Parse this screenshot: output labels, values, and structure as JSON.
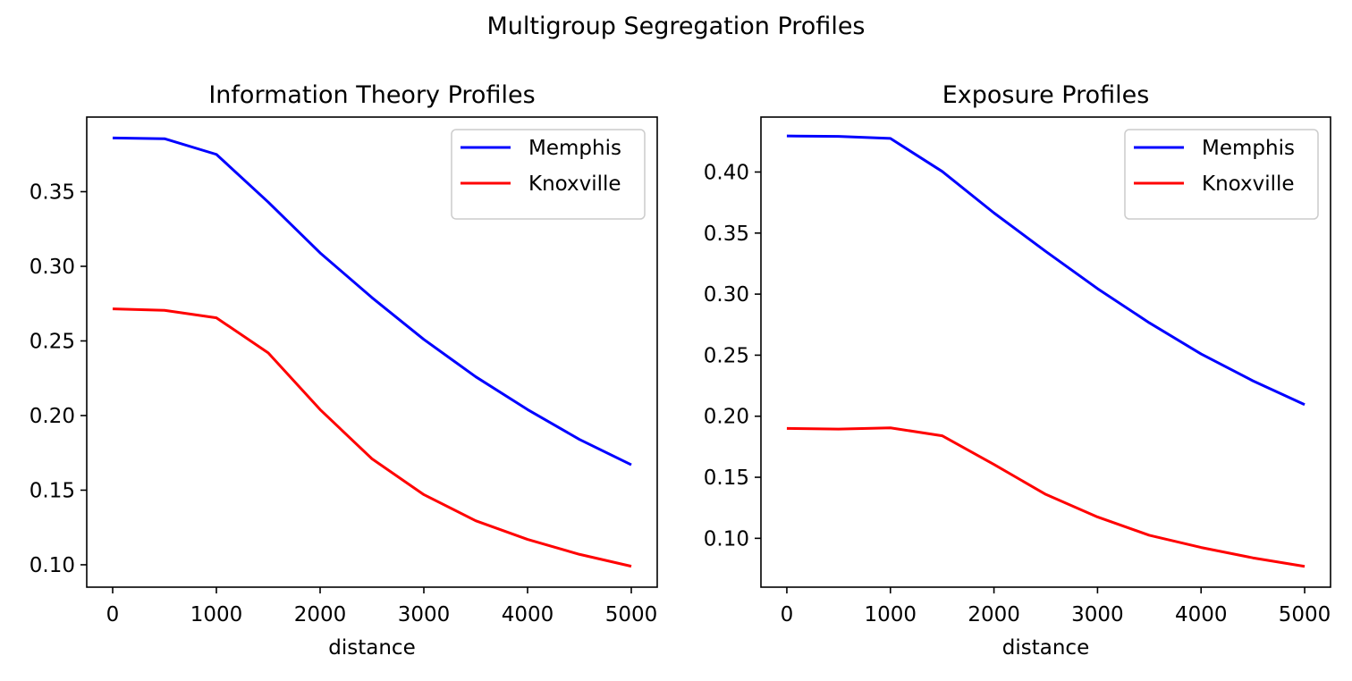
{
  "figure": {
    "suptitle": "Multigroup Segregation Profiles"
  },
  "chart_data": [
    {
      "type": "line",
      "title": "Information Theory Profiles",
      "xlabel": "distance",
      "ylabel": "",
      "xlim": [
        -250,
        5250
      ],
      "ylim": [
        0.085,
        0.4
      ],
      "xticks": [
        0,
        1000,
        2000,
        3000,
        4000,
        5000
      ],
      "yticks": [
        0.1,
        0.15,
        0.2,
        0.25,
        0.3,
        0.35
      ],
      "ytick_labels": [
        "0.10",
        "0.15",
        "0.20",
        "0.25",
        "0.30",
        "0.35"
      ],
      "x": [
        0,
        500,
        1000,
        1500,
        2000,
        2500,
        3000,
        3500,
        4000,
        4500,
        5000
      ],
      "legend_position": "top-right",
      "grid": false,
      "series": [
        {
          "name": "Memphis",
          "color": "#0000ff",
          "values": [
            0.386,
            0.3855,
            0.375,
            0.343,
            0.309,
            0.279,
            0.251,
            0.226,
            0.204,
            0.184,
            0.167
          ]
        },
        {
          "name": "Knoxville",
          "color": "#ff0000",
          "values": [
            0.2715,
            0.2705,
            0.2655,
            0.242,
            0.204,
            0.171,
            0.147,
            0.1295,
            0.117,
            0.107,
            0.099
          ]
        }
      ]
    },
    {
      "type": "line",
      "title": "Exposure Profiles",
      "xlabel": "distance",
      "ylabel": "",
      "xlim": [
        -250,
        5250
      ],
      "ylim": [
        0.06,
        0.445
      ],
      "xticks": [
        0,
        1000,
        2000,
        3000,
        4000,
        5000
      ],
      "yticks": [
        0.1,
        0.15,
        0.2,
        0.25,
        0.3,
        0.35,
        0.4
      ],
      "ytick_labels": [
        "0.10",
        "0.15",
        "0.20",
        "0.25",
        "0.30",
        "0.35",
        "0.40"
      ],
      "x": [
        0,
        500,
        1000,
        1500,
        2000,
        2500,
        3000,
        3500,
        4000,
        4500,
        5000
      ],
      "legend_position": "top-right",
      "grid": false,
      "series": [
        {
          "name": "Memphis",
          "color": "#0000ff",
          "values": [
            0.4295,
            0.4292,
            0.4275,
            0.4005,
            0.3665,
            0.335,
            0.3045,
            0.2765,
            0.251,
            0.229,
            0.2095
          ]
        },
        {
          "name": "Knoxville",
          "color": "#ff0000",
          "values": [
            0.19,
            0.1895,
            0.1905,
            0.184,
            0.1605,
            0.136,
            0.1175,
            0.1025,
            0.0925,
            0.084,
            0.077
          ]
        }
      ]
    }
  ]
}
